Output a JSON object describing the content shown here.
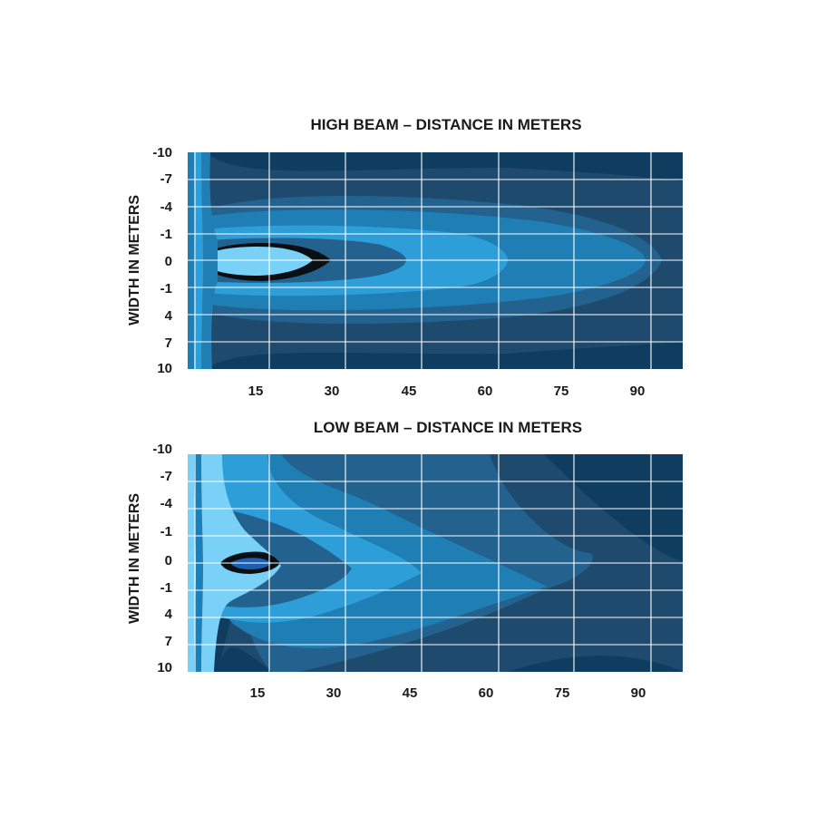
{
  "colors": {
    "background": "#0f3d60",
    "level_1": "#1d4a6d",
    "level_2": "#23628e",
    "level_3": "#1f7fb4",
    "level_4": "#2d9ed8",
    "level_5": "#7ad1f7",
    "hotspot_outline": "#0a0f14",
    "hotspot_inner": "#1b5fb0",
    "grid": "#ffffff"
  },
  "chart_data": [
    {
      "type": "heatmap",
      "title": "HIGH BEAM –  DISTANCE IN METERS",
      "xlabel": "",
      "ylabel": "WIDTH IN METERS",
      "x_ticks": [
        "15",
        "30",
        "45",
        "60",
        "75",
        "90"
      ],
      "y_ticks": [
        "-10",
        "-7",
        "-4",
        "-1",
        "0",
        "-1",
        "4",
        "7",
        "10"
      ],
      "xlim": [
        0,
        97
      ],
      "grid": true,
      "zones": [
        {
          "level": "level_1",
          "reach": 97
        },
        {
          "level": "level_3",
          "reach": 90
        },
        {
          "level": "level_4",
          "reach": 62
        },
        {
          "level": "level_2",
          "reach": 42
        },
        {
          "level": "hotspot_outline",
          "reach": 28
        },
        {
          "level": "level_5",
          "reach": 25
        }
      ]
    },
    {
      "type": "heatmap",
      "title": "LOW BEAM – DISTANCE IN METERS",
      "xlabel": "",
      "ylabel": "WIDTH IN METERS",
      "x_ticks": [
        "15",
        "30",
        "45",
        "60",
        "75",
        "90"
      ],
      "y_ticks": [
        "-10",
        "-7",
        "-4",
        "-1",
        "0",
        "-1",
        "4",
        "7",
        "10"
      ],
      "xlim": [
        0,
        97
      ],
      "grid": true,
      "zones": [
        {
          "level": "level_1",
          "reach": 97
        },
        {
          "level": "level_2",
          "reach": 70
        },
        {
          "level": "level_3",
          "reach": 45
        },
        {
          "level": "level_4",
          "reach": 30
        },
        {
          "level": "level_5",
          "reach": 15
        },
        {
          "level": "hotspot_outline",
          "reach": 17
        }
      ]
    }
  ]
}
